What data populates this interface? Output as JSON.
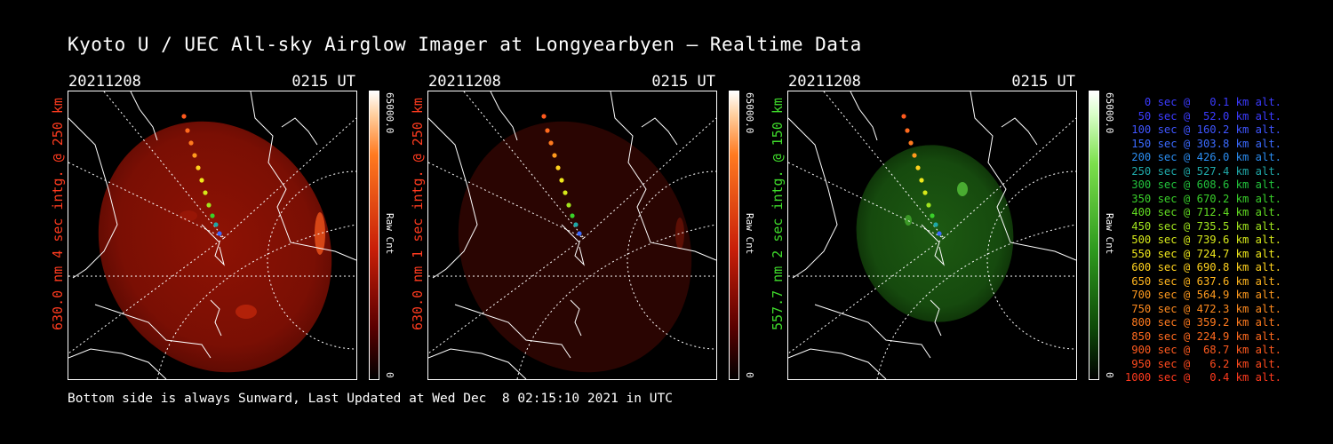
{
  "title": "Kyoto U / UEC All-sky Airglow Imager at Longyearbyen — Realtime Data",
  "panels": [
    {
      "date": "20211208",
      "time": "0215 UT",
      "side_label": "630.0 nm 4 sec intg. @ 250 km",
      "label_color": "#ff3b1f",
      "colorbar": {
        "max": "65000.0",
        "min": "0",
        "unit": "Raw Cnt",
        "palette": "red"
      }
    },
    {
      "date": "20211208",
      "time": "0215 UT",
      "side_label": "630.0 nm 1 sec intg. @ 250 km",
      "label_color": "#ff3b1f",
      "colorbar": {
        "max": "65000.0",
        "min": "0",
        "unit": "Raw Cnt",
        "palette": "red"
      }
    },
    {
      "date": "20211208",
      "time": "0215 UT",
      "side_label": "557.7 nm 2 sec intg. @ 150 km",
      "label_color": "#3fdc2b",
      "colorbar": {
        "max": "65000.0",
        "min": "0",
        "unit": "Raw Cnt",
        "palette": "green"
      }
    }
  ],
  "legend": [
    {
      "text": "  0 sec @   0.1 km alt.",
      "color": "#3b3bff"
    },
    {
      "text": " 50 sec @  52.0 km alt.",
      "color": "#3b3bff"
    },
    {
      "text": "100 sec @ 160.2 km alt.",
      "color": "#3f55ff"
    },
    {
      "text": "150 sec @ 303.8 km alt.",
      "color": "#3a6aff"
    },
    {
      "text": "200 sec @ 426.0 km alt.",
      "color": "#2a8cf0"
    },
    {
      "text": "250 sec @ 527.4 km alt.",
      "color": "#1fa8a8"
    },
    {
      "text": "300 sec @ 608.6 km alt.",
      "color": "#22c23c"
    },
    {
      "text": "350 sec @ 670.2 km alt.",
      "color": "#39d02a"
    },
    {
      "text": "400 sec @ 712.4 km alt.",
      "color": "#62dc22"
    },
    {
      "text": "450 sec @ 735.5 km alt.",
      "color": "#a0e41e"
    },
    {
      "text": "500 sec @ 739.6 km alt.",
      "color": "#d6e81a"
    },
    {
      "text": "550 sec @ 724.7 km alt.",
      "color": "#f0e81c"
    },
    {
      "text": "600 sec @ 690.8 km alt.",
      "color": "#ffd21e"
    },
    {
      "text": "650 sec @ 637.6 km alt.",
      "color": "#ffb41e"
    },
    {
      "text": "700 sec @ 564.9 km alt.",
      "color": "#ff9a1e"
    },
    {
      "text": "750 sec @ 472.3 km alt.",
      "color": "#ff8a1e"
    },
    {
      "text": "800 sec @ 359.2 km alt.",
      "color": "#ff7a1e"
    },
    {
      "text": "850 sec @ 224.9 km alt.",
      "color": "#ff6a1e"
    },
    {
      "text": "900 sec @  68.7 km alt.",
      "color": "#ff5a1e"
    },
    {
      "text": "950 sec @   6.2 km alt.",
      "color": "#ff4a1e"
    },
    {
      "text": "1000 sec @   0.4 km alt.",
      "color": "#ff3a1e"
    }
  ],
  "footer": "Bottom side is always Sunward, Last Updated at Wed Dec  8 02:15:10 2021 in UTC"
}
